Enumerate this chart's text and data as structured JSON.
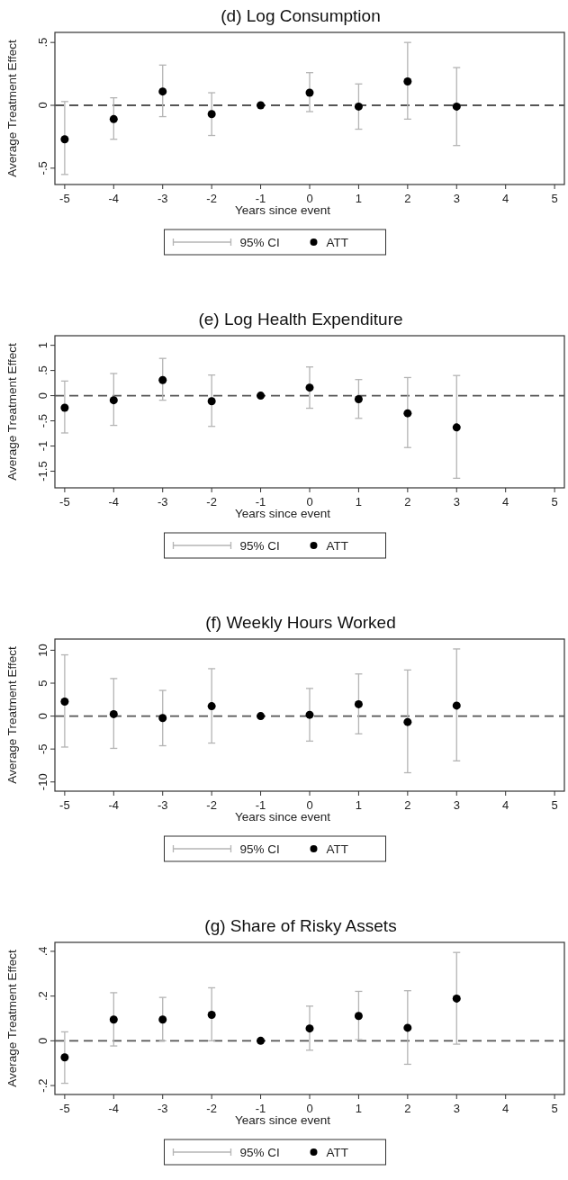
{
  "chart_data": [
    {
      "type": "scatter",
      "title": "(d) Log Consumption",
      "xlabel": "Years since event",
      "ylabel": "Average Treatment Effect",
      "x": [
        -5,
        -4,
        -3,
        -2,
        -1,
        0,
        1,
        2,
        3
      ],
      "xlim": [
        -5.2,
        5.2
      ],
      "xticks": [
        -5,
        -4,
        -3,
        -2,
        -1,
        0,
        1,
        2,
        3,
        4,
        5
      ],
      "ylim": [
        -0.63,
        0.58
      ],
      "yticks": [
        {
          "value": -0.5,
          "label": "-.5"
        },
        0,
        {
          "value": 0.5,
          "label": ".5"
        }
      ],
      "grid": false,
      "legend": "bottom",
      "marker": "circle",
      "annotations": [
        "95% CI"
      ],
      "series": [
        {
          "name": "ATT",
          "color": "#000000",
          "values": [
            -0.27,
            -0.11,
            0.11,
            -0.07,
            0,
            0.1,
            -0.01,
            0.19,
            -0.01
          ],
          "errors": [
            [
              -0.55,
              0.03
            ],
            [
              -0.27,
              0.06
            ],
            [
              -0.09,
              0.32
            ],
            [
              -0.24,
              0.1
            ],
            null,
            [
              -0.05,
              0.26
            ],
            [
              -0.19,
              0.17
            ],
            [
              -0.11,
              0.5
            ],
            [
              -0.32,
              0.3
            ]
          ]
        }
      ],
      "ref_lines": [
        {
          "axis": "y",
          "value": 0,
          "color": "#555555",
          "line_style": "dashed"
        }
      ]
    },
    {
      "type": "scatter",
      "title": "(e) Log Health Expenditure",
      "xlabel": "Years since event",
      "ylabel": "Average Treatment Effect",
      "x": [
        -5,
        -4,
        -3,
        -2,
        -1,
        0,
        1,
        2,
        3
      ],
      "xlim": [
        -5.2,
        5.2
      ],
      "xticks": [
        -5,
        -4,
        -3,
        -2,
        -1,
        0,
        1,
        2,
        3,
        4,
        5
      ],
      "ylim": [
        -1.83,
        1.19
      ],
      "yticks": [
        {
          "value": -1.5,
          "label": "-1.5"
        },
        -1,
        {
          "value": -0.5,
          "label": "-.5"
        },
        0,
        {
          "value": 0.5,
          "label": ".5"
        },
        1
      ],
      "grid": false,
      "legend": "bottom",
      "marker": "circle",
      "annotations": [
        "95% CI"
      ],
      "series": [
        {
          "name": "ATT",
          "color": "#000000",
          "values": [
            -0.24,
            -0.09,
            0.31,
            -0.11,
            0,
            0.16,
            -0.07,
            -0.35,
            -0.63
          ],
          "errors": [
            [
              -0.74,
              0.29
            ],
            [
              -0.59,
              0.44
            ],
            [
              -0.09,
              0.74
            ],
            [
              -0.61,
              0.41
            ],
            null,
            [
              -0.25,
              0.57
            ],
            [
              -0.45,
              0.32
            ],
            [
              -1.03,
              0.36
            ],
            [
              -1.64,
              0.4
            ]
          ]
        }
      ],
      "ref_lines": [
        {
          "axis": "y",
          "value": 0,
          "color": "#555555",
          "line_style": "dashed"
        }
      ]
    },
    {
      "type": "scatter",
      "title": "(f) Weekly Hours Worked",
      "xlabel": "Years since event",
      "ylabel": "Average Treatment Effect",
      "x": [
        -5,
        -4,
        -3,
        -2,
        -1,
        0,
        1,
        2,
        3
      ],
      "xlim": [
        -5.2,
        5.2
      ],
      "xticks": [
        -5,
        -4,
        -3,
        -2,
        -1,
        0,
        1,
        2,
        3,
        4,
        5
      ],
      "ylim": [
        -11.4,
        11.7
      ],
      "yticks": [
        -10,
        -5,
        0,
        5,
        10
      ],
      "grid": false,
      "legend": "bottom",
      "marker": "circle",
      "annotations": [
        "95% CI"
      ],
      "series": [
        {
          "name": "ATT",
          "color": "#000000",
          "values": [
            2.2,
            0.3,
            -0.3,
            1.5,
            0,
            0.2,
            1.8,
            -0.9,
            1.6
          ],
          "errors": [
            [
              -4.7,
              9.3
            ],
            [
              -4.9,
              5.7
            ],
            [
              -4.5,
              3.9
            ],
            [
              -4.1,
              7.2
            ],
            null,
            [
              -3.8,
              4.2
            ],
            [
              -2.7,
              6.4
            ],
            [
              -8.6,
              7
            ],
            [
              -6.8,
              10.2
            ]
          ]
        }
      ],
      "ref_lines": [
        {
          "axis": "y",
          "value": 0,
          "color": "#555555",
          "line_style": "dashed"
        }
      ]
    },
    {
      "type": "scatter",
      "title": "(g) Share of Risky Assets",
      "xlabel": "Years since event",
      "ylabel": "Average Treatment Effect",
      "x": [
        -5,
        -4,
        -3,
        -2,
        -1,
        0,
        1,
        2,
        3
      ],
      "xlim": [
        -5.2,
        5.2
      ],
      "xticks": [
        -5,
        -4,
        -3,
        -2,
        -1,
        0,
        1,
        2,
        3,
        4,
        5
      ],
      "ylim": [
        -0.24,
        0.44
      ],
      "yticks": [
        {
          "value": -0.2,
          "label": "-.2"
        },
        0,
        {
          "value": 0.2,
          "label": ".2"
        },
        {
          "value": 0.4,
          "label": ".4"
        }
      ],
      "grid": false,
      "legend": "bottom",
      "marker": "circle",
      "annotations": [
        "95% CI"
      ],
      "series": [
        {
          "name": "ATT",
          "color": "#000000",
          "values": [
            -0.074,
            0.095,
            0.095,
            0.116,
            0,
            0.055,
            0.111,
            0.058,
            0.189
          ],
          "errors": [
            [
              -0.19,
              0.04
            ],
            [
              -0.023,
              0.215
            ],
            [
              0,
              0.194
            ],
            [
              0,
              0.237
            ],
            null,
            [
              -0.042,
              0.155
            ],
            [
              0.005,
              0.221
            ],
            [
              -0.105,
              0.224
            ],
            [
              -0.015,
              0.395
            ]
          ]
        }
      ],
      "ref_lines": [
        {
          "axis": "y",
          "value": 0,
          "color": "#555555",
          "line_style": "dashed"
        }
      ]
    }
  ]
}
